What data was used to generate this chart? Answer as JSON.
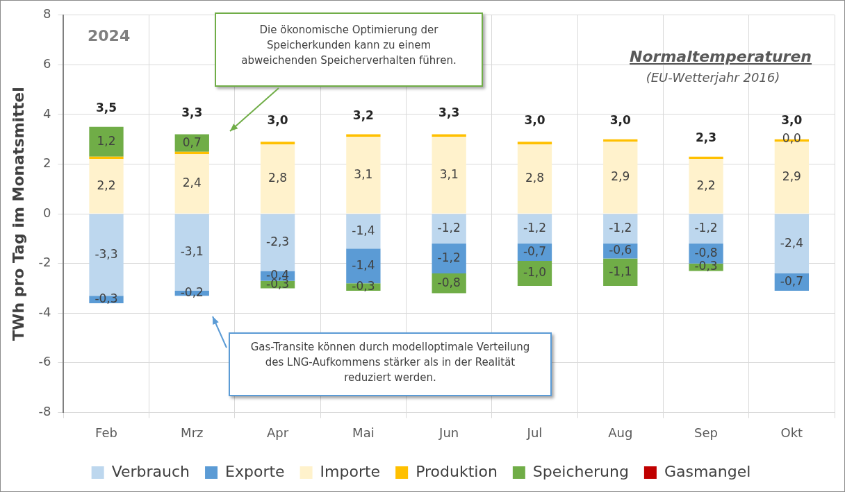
{
  "chart_data": {
    "type": "bar",
    "stacked": true,
    "ylabel": "TWh pro Tag im Monatsmittel",
    "categories": [
      "Feb",
      "Mrz",
      "Apr",
      "Mai",
      "Jun",
      "Jul",
      "Aug",
      "Sep",
      "Okt"
    ],
    "series": [
      {
        "name": "Verbrauch",
        "color": "#bdd7ee",
        "values": [
          -3.3,
          -3.1,
          -2.3,
          -1.4,
          -1.2,
          -1.2,
          -1.2,
          -1.2,
          -2.4
        ],
        "value_labels": [
          "-3,3",
          "-3,1",
          "-2,3",
          "-1,4",
          "-1,2",
          "-1,2",
          "-1,2",
          "-1,2",
          "-2,4"
        ]
      },
      {
        "name": "Exporte",
        "color": "#5b9bd5",
        "values": [
          -0.3,
          -0.2,
          -0.4,
          -1.4,
          -1.2,
          -0.7,
          -0.6,
          -0.8,
          -0.7
        ],
        "value_labels": [
          "-0,3",
          "-0,2",
          "-0,4",
          "-1,4",
          "-1,2",
          "-0,7",
          "-0,6",
          "-0,8",
          "-0,7"
        ]
      },
      {
        "name": "Importe",
        "color": "#fff2cc",
        "values": [
          2.2,
          2.4,
          2.8,
          3.1,
          3.1,
          2.8,
          2.9,
          2.2,
          2.9
        ],
        "value_labels": [
          "2,2",
          "2,4",
          "2,8",
          "3,1",
          "3,1",
          "2,8",
          "2,9",
          "2,2",
          "2,9"
        ]
      },
      {
        "name": "Produktion",
        "color": "#ffc000",
        "values": [
          0.1,
          0.1,
          0.1,
          0.1,
          0.1,
          0.1,
          0.1,
          0.1,
          0.1
        ]
      },
      {
        "name": "Speicherung",
        "color": "#70ad47",
        "values": [
          1.2,
          0.7,
          -0.3,
          -0.3,
          -0.8,
          -1.0,
          -1.1,
          -0.3,
          0.0
        ],
        "value_labels": [
          "1,2",
          "0,7",
          "-0,3",
          "-0,3",
          "-0,8",
          "-1,0",
          "-1,1",
          "-0,3",
          "0,0"
        ]
      },
      {
        "name": "Gasmangel",
        "color": "#c00000",
        "values": [
          null,
          null,
          null,
          null,
          null,
          null,
          null,
          null,
          null
        ]
      }
    ],
    "ylim": [
      -8,
      8
    ],
    "yticks": [
      -8,
      -6,
      -4,
      -2,
      0,
      2,
      4,
      6,
      8
    ],
    "grid": true,
    "legend": "bottom",
    "annotations": [
      "2024",
      "Normaltemperaturen",
      "(EU-Wetterjahr 2016)",
      "Die ökonomische Optimierung der Speicherkunden kann zu einem abweichenden Speicherverhalten führen.",
      "Gas-Transite können durch modelloptimale Verteilung des LNG-Aufkommens stärker als in der Realität reduziert werden.",
      {
        "text": "3,5",
        "x": "Feb",
        "y": 3.5
      },
      {
        "text": "3,3",
        "x": "Mrz",
        "y": 3.3
      },
      {
        "text": "3,0",
        "x": "Apr",
        "y": 3.0
      },
      {
        "text": "3,2",
        "x": "Mai",
        "y": 3.2
      },
      {
        "text": "3,3",
        "x": "Jun",
        "y": 3.3
      },
      {
        "text": "3,0",
        "x": "Jul",
        "y": 3.0
      },
      {
        "text": "3,0",
        "x": "Aug",
        "y": 3.0
      },
      {
        "text": "2,3",
        "x": "Sep",
        "y": 2.3
      },
      {
        "text": "3,0",
        "x": "Okt",
        "y": 3.0
      }
    ]
  }
}
